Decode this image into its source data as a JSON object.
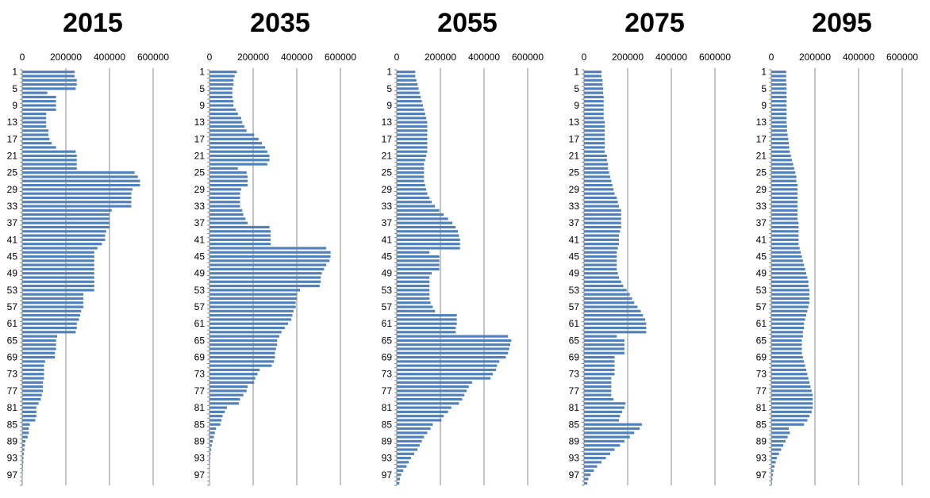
{
  "chart_data": [
    {
      "type": "bar",
      "orientation": "horizontal",
      "title": "2015",
      "xlim": [
        0,
        600000
      ],
      "x_ticks": [
        "0",
        "200000",
        "400000",
        "600000"
      ],
      "y_tick_labels": [
        "1",
        "5",
        "9",
        "13",
        "17",
        "21",
        "25",
        "29",
        "33",
        "37",
        "41",
        "45",
        "49",
        "53",
        "57",
        "61",
        "65",
        "69",
        "73",
        "77",
        "81",
        "85",
        "89",
        "93",
        "97"
      ],
      "grid": "vertical",
      "values": [
        240000,
        240000,
        250000,
        250000,
        245000,
        115000,
        155000,
        155000,
        155000,
        155000,
        110000,
        110000,
        110000,
        110000,
        120000,
        120000,
        125000,
        135000,
        155000,
        245000,
        250000,
        250000,
        250000,
        250000,
        515000,
        530000,
        540000,
        540000,
        505000,
        500000,
        500000,
        500000,
        500000,
        410000,
        400000,
        400000,
        400000,
        400000,
        385000,
        380000,
        380000,
        365000,
        345000,
        330000,
        330000,
        330000,
        330000,
        330000,
        330000,
        330000,
        330000,
        330000,
        330000,
        280000,
        280000,
        280000,
        280000,
        270000,
        265000,
        260000,
        250000,
        250000,
        245000,
        160000,
        155000,
        155000,
        155000,
        150000,
        150000,
        105000,
        100000,
        100000,
        100000,
        100000,
        95000,
        95000,
        95000,
        90000,
        85000,
        75000,
        65000,
        65000,
        65000,
        60000,
        35000,
        30000,
        30000,
        25000,
        15000,
        12000,
        10000,
        8000,
        6000,
        5000,
        4000,
        3000,
        2000,
        1500,
        1000
      ]
    },
    {
      "type": "bar",
      "orientation": "horizontal",
      "title": "2035",
      "xlim": [
        0,
        600000
      ],
      "x_ticks": [
        "0",
        "200000",
        "400000",
        "600000"
      ],
      "y_tick_labels": [
        "1",
        "5",
        "9",
        "13",
        "17",
        "21",
        "25",
        "29",
        "33",
        "37",
        "41",
        "45",
        "49",
        "53",
        "57",
        "61",
        "65",
        "69",
        "73",
        "77",
        "81",
        "85",
        "89",
        "93",
        "97"
      ],
      "grid": "vertical",
      "values": [
        125000,
        115000,
        110000,
        110000,
        105000,
        105000,
        105000,
        110000,
        110000,
        120000,
        130000,
        145000,
        150000,
        160000,
        170000,
        205000,
        225000,
        240000,
        255000,
        265000,
        275000,
        275000,
        265000,
        130000,
        170000,
        175000,
        175000,
        175000,
        145000,
        140000,
        140000,
        140000,
        140000,
        150000,
        155000,
        165000,
        175000,
        275000,
        280000,
        280000,
        280000,
        280000,
        535000,
        555000,
        555000,
        550000,
        535000,
        525000,
        515000,
        510000,
        510000,
        505000,
        415000,
        400000,
        400000,
        395000,
        395000,
        385000,
        380000,
        375000,
        360000,
        345000,
        330000,
        320000,
        310000,
        310000,
        305000,
        300000,
        300000,
        295000,
        285000,
        230000,
        220000,
        210000,
        205000,
        175000,
        170000,
        155000,
        140000,
        135000,
        80000,
        70000,
        60000,
        55000,
        50000,
        30000,
        25000,
        20000,
        15000,
        10000,
        8000,
        5000,
        4000,
        3000,
        2000,
        1500,
        1000,
        800,
        500
      ]
    },
    {
      "type": "bar",
      "orientation": "horizontal",
      "title": "2055",
      "xlim": [
        0,
        600000
      ],
      "x_ticks": [
        "0",
        "200000",
        "400000",
        "600000"
      ],
      "y_tick_labels": [
        "1",
        "5",
        "9",
        "13",
        "17",
        "21",
        "25",
        "29",
        "33",
        "37",
        "41",
        "45",
        "49",
        "53",
        "57",
        "61",
        "65",
        "69",
        "73",
        "77",
        "81",
        "85",
        "89",
        "93",
        "97"
      ],
      "grid": "vertical",
      "values": [
        85000,
        85000,
        90000,
        95000,
        100000,
        105000,
        110000,
        115000,
        120000,
        125000,
        130000,
        135000,
        140000,
        140000,
        140000,
        140000,
        140000,
        140000,
        140000,
        140000,
        135000,
        130000,
        125000,
        125000,
        125000,
        125000,
        125000,
        130000,
        135000,
        140000,
        150000,
        160000,
        175000,
        195000,
        215000,
        235000,
        255000,
        270000,
        280000,
        285000,
        290000,
        290000,
        290000,
        150000,
        195000,
        195000,
        195000,
        195000,
        160000,
        150000,
        150000,
        150000,
        150000,
        150000,
        150000,
        155000,
        165000,
        175000,
        275000,
        275000,
        275000,
        270000,
        270000,
        510000,
        525000,
        520000,
        515000,
        510000,
        500000,
        470000,
        460000,
        455000,
        440000,
        430000,
        345000,
        330000,
        320000,
        310000,
        300000,
        285000,
        250000,
        235000,
        215000,
        205000,
        165000,
        155000,
        140000,
        125000,
        115000,
        105000,
        95000,
        80000,
        65000,
        55000,
        45000,
        30000,
        20000,
        15000,
        12000
      ]
    },
    {
      "type": "bar",
      "orientation": "horizontal",
      "title": "2075",
      "xlim": [
        0,
        600000
      ],
      "x_ticks": [
        "0",
        "200000",
        "400000",
        "600000"
      ],
      "y_tick_labels": [
        "1",
        "5",
        "9",
        "13",
        "17",
        "21",
        "25",
        "29",
        "33",
        "37",
        "41",
        "45",
        "49",
        "53",
        "57",
        "61",
        "65",
        "69",
        "73",
        "77",
        "81",
        "85",
        "89",
        "93",
        "97"
      ],
      "grid": "vertical",
      "values": [
        80000,
        80000,
        85000,
        85000,
        88000,
        88000,
        90000,
        90000,
        90000,
        90000,
        90000,
        90000,
        95000,
        95000,
        95000,
        95000,
        95000,
        95000,
        95000,
        95000,
        105000,
        105000,
        110000,
        110000,
        115000,
        120000,
        125000,
        130000,
        135000,
        140000,
        150000,
        155000,
        160000,
        170000,
        170000,
        170000,
        170000,
        170000,
        165000,
        160000,
        160000,
        160000,
        155000,
        150000,
        150000,
        150000,
        150000,
        150000,
        155000,
        160000,
        170000,
        180000,
        195000,
        210000,
        220000,
        230000,
        245000,
        260000,
        270000,
        280000,
        285000,
        285000,
        285000,
        150000,
        185000,
        185000,
        185000,
        185000,
        140000,
        140000,
        140000,
        140000,
        140000,
        125000,
        125000,
        125000,
        125000,
        125000,
        135000,
        190000,
        185000,
        175000,
        165000,
        160000,
        265000,
        255000,
        230000,
        210000,
        185000,
        165000,
        140000,
        120000,
        100000,
        80000,
        60000,
        45000,
        30000,
        20000,
        15000
      ]
    },
    {
      "type": "bar",
      "orientation": "horizontal",
      "title": "2095",
      "xlim": [
        0,
        600000
      ],
      "x_ticks": [
        "0",
        "200000",
        "400000",
        "600000"
      ],
      "y_tick_labels": [
        "1",
        "5",
        "9",
        "13",
        "17",
        "21",
        "25",
        "29",
        "33",
        "37",
        "41",
        "45",
        "49",
        "53",
        "57",
        "61",
        "65",
        "69",
        "73",
        "77",
        "81",
        "85",
        "89",
        "93",
        "97"
      ],
      "grid": "vertical",
      "values": [
        68000,
        68000,
        68000,
        70000,
        70000,
        70000,
        70000,
        70000,
        70000,
        70000,
        70000,
        70000,
        70000,
        72000,
        72000,
        75000,
        78000,
        80000,
        82000,
        85000,
        90000,
        95000,
        100000,
        105000,
        110000,
        115000,
        115000,
        120000,
        120000,
        120000,
        120000,
        120000,
        120000,
        120000,
        120000,
        120000,
        125000,
        125000,
        125000,
        125000,
        125000,
        125000,
        130000,
        135000,
        140000,
        145000,
        150000,
        155000,
        160000,
        165000,
        170000,
        170000,
        175000,
        175000,
        175000,
        175000,
        170000,
        165000,
        160000,
        155000,
        150000,
        150000,
        145000,
        145000,
        140000,
        140000,
        140000,
        140000,
        145000,
        150000,
        155000,
        160000,
        165000,
        170000,
        175000,
        180000,
        185000,
        190000,
        190000,
        190000,
        190000,
        185000,
        175000,
        165000,
        150000,
        80000,
        85000,
        75000,
        65000,
        55000,
        45000,
        35000,
        25000,
        20000,
        15000,
        10000,
        8000,
        5000,
        3000
      ]
    }
  ]
}
